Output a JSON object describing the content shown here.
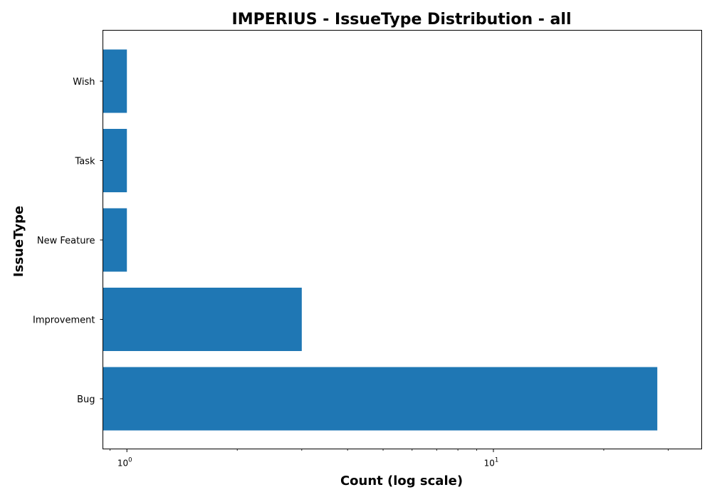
{
  "chart_data": {
    "type": "bar",
    "orientation": "horizontal",
    "title": "IMPERIUS - IssueType Distribution - all",
    "xlabel": "Count (log scale)",
    "ylabel": "IssueType",
    "x_scale": "log",
    "xlim": [
      0.86,
      37
    ],
    "grid": false,
    "categories": [
      "Bug",
      "Improvement",
      "New Feature",
      "Task",
      "Wish"
    ],
    "values": [
      28,
      3,
      1,
      1,
      1
    ],
    "x_ticks": [
      {
        "base": "10",
        "exp": "0",
        "value": 1
      },
      {
        "base": "10",
        "exp": "1",
        "value": 10
      }
    ],
    "colors": {
      "bar": "#1f77b4"
    }
  }
}
